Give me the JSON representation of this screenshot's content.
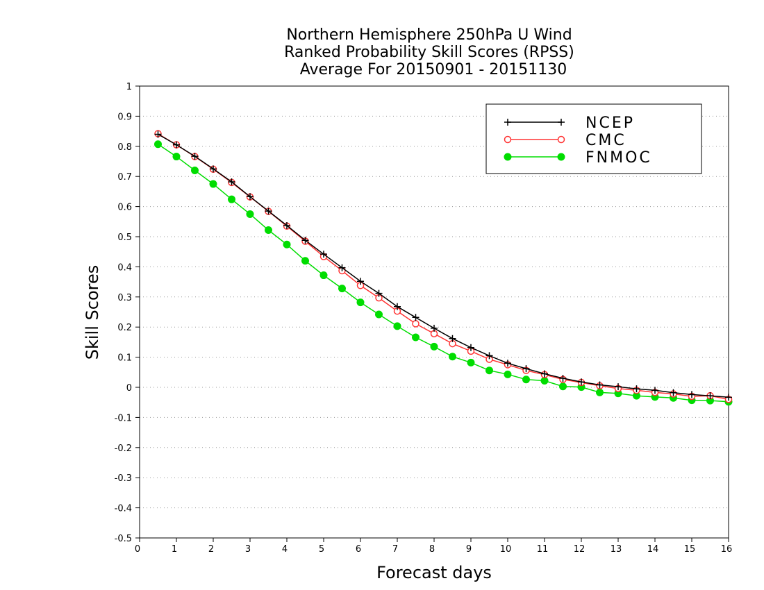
{
  "chart_data": {
    "type": "line",
    "title_lines": [
      "Northern Hemisphere 250hPa U Wind",
      "Ranked Probability Skill Scores (RPSS)",
      "Average For 20150901 - 20151130"
    ],
    "xlabel": "Forecast days",
    "ylabel": "Skill Scores",
    "xlim": [
      0,
      16
    ],
    "ylim": [
      -0.5,
      1
    ],
    "xticks": [
      0,
      1,
      2,
      3,
      4,
      5,
      6,
      7,
      8,
      9,
      10,
      11,
      12,
      13,
      14,
      15,
      16
    ],
    "yticks": [
      -0.5,
      -0.4,
      -0.3,
      -0.2,
      -0.1,
      0,
      0.1,
      0.2,
      0.3,
      0.4,
      0.5,
      0.6,
      0.7,
      0.8,
      0.9,
      1
    ],
    "ytick_labels": [
      "-0.5",
      "-0.4",
      "-0.3",
      "-0.2",
      "-0.1",
      "0",
      "0.1",
      "0.2",
      "0.3",
      "0.4",
      "0.5",
      "0.6",
      "0.7",
      "0.8",
      "0.9",
      "1"
    ],
    "grid": "horizontal dotted",
    "legend_position": "top-right",
    "x": [
      0.5,
      1,
      1.5,
      2,
      2.5,
      3,
      3.5,
      4,
      4.5,
      5,
      5.5,
      6,
      6.5,
      7,
      7.5,
      8,
      8.5,
      9,
      9.5,
      10,
      10.5,
      11,
      11.5,
      12,
      12.5,
      13,
      13.5,
      14,
      14.5,
      15,
      15.5,
      16
    ],
    "series": [
      {
        "name": "NCEP",
        "color": "#000000",
        "marker": "plus",
        "values": [
          0.84,
          0.805,
          0.767,
          0.725,
          0.682,
          0.633,
          0.585,
          0.537,
          0.488,
          0.442,
          0.397,
          0.352,
          0.312,
          0.268,
          0.232,
          0.196,
          0.162,
          0.132,
          0.105,
          0.08,
          0.062,
          0.045,
          0.03,
          0.018,
          0.008,
          0.002,
          -0.005,
          -0.01,
          -0.018,
          -0.024,
          -0.028,
          -0.033
        ]
      },
      {
        "name": "CMC",
        "color": "#ff3333",
        "marker": "open-circle",
        "values": [
          0.842,
          0.805,
          0.766,
          0.724,
          0.68,
          0.632,
          0.584,
          0.535,
          0.485,
          0.434,
          0.387,
          0.338,
          0.297,
          0.253,
          0.211,
          0.178,
          0.145,
          0.12,
          0.093,
          0.075,
          0.056,
          0.042,
          0.026,
          0.016,
          0.005,
          -0.004,
          -0.01,
          -0.017,
          -0.022,
          -0.03,
          -0.028,
          -0.04
        ]
      },
      {
        "name": "FNMOC",
        "color": "#00dd00",
        "marker": "filled-circle",
        "values": [
          0.807,
          0.766,
          0.72,
          0.675,
          0.624,
          0.575,
          0.522,
          0.474,
          0.42,
          0.372,
          0.328,
          0.282,
          0.242,
          0.203,
          0.166,
          0.135,
          0.102,
          0.082,
          0.056,
          0.043,
          0.026,
          0.022,
          0.003,
          0.001,
          -0.017,
          -0.02,
          -0.028,
          -0.032,
          -0.035,
          -0.043,
          -0.044,
          -0.048
        ]
      }
    ]
  }
}
